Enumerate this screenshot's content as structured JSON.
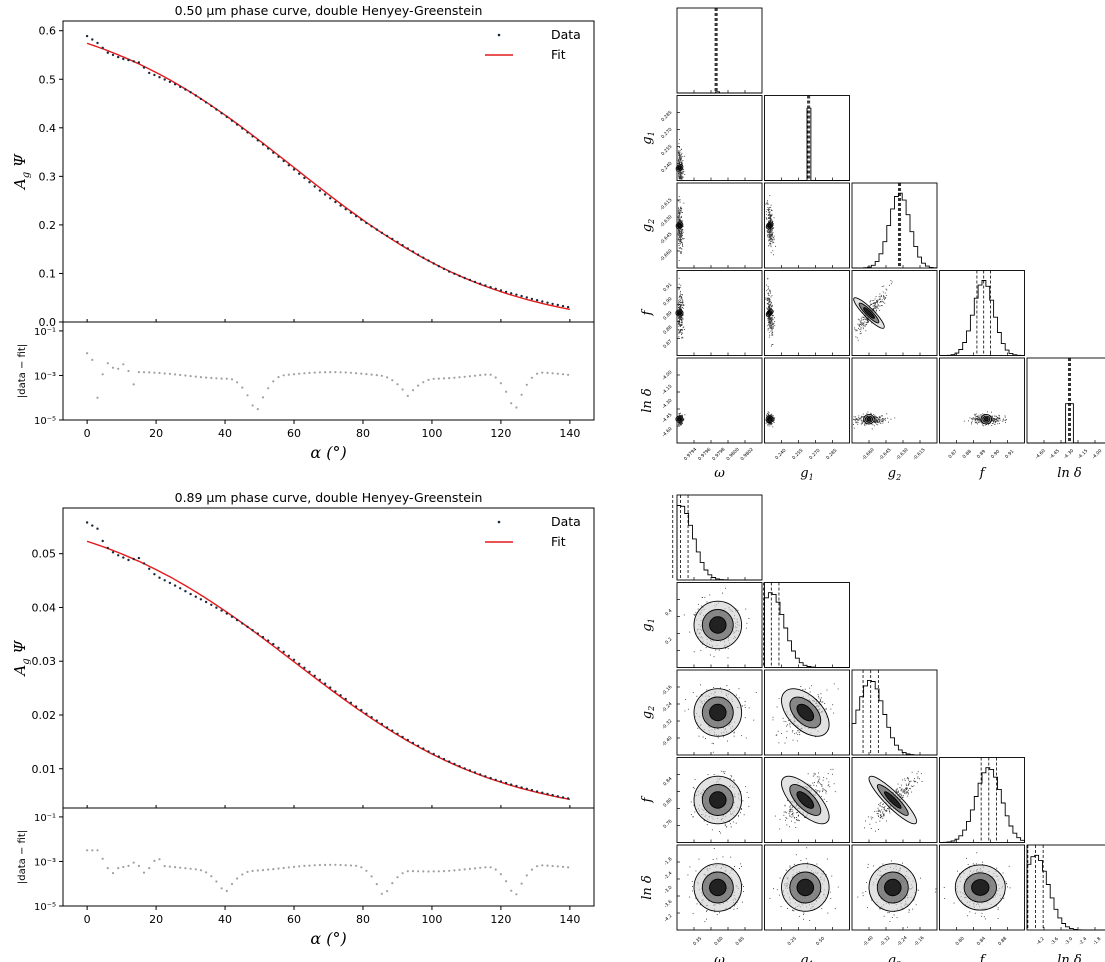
{
  "chart_data": [
    {
      "type": "scatter",
      "title": "0.50 μm phase curve, double Henyey-Greenstein",
      "ylabel": "A_g Ψ",
      "ylabel_parts": {
        "main": "A",
        "sub": "g",
        "tail": "Ψ"
      },
      "xlabel": "α (°)",
      "xlim": [
        -7,
        147
      ],
      "ylim": [
        0,
        0.62
      ],
      "xticks": [
        "0",
        "20",
        "40",
        "60",
        "80",
        "100",
        "120",
        "140"
      ],
      "xtick_values": [
        0,
        20,
        40,
        60,
        80,
        100,
        120,
        140
      ],
      "yticks": [
        "0.0",
        "0.1",
        "0.2",
        "0.3",
        "0.4",
        "0.5",
        "0.6"
      ],
      "ytick_values": [
        0,
        0.1,
        0.2,
        0.3,
        0.4,
        0.5,
        0.6
      ],
      "legend": {
        "position": "top-right",
        "entries": [
          "Data",
          "Fit"
        ]
      },
      "colors": {
        "data": "#1a2a3a",
        "fit": "#e41a1c",
        "residual": "#a0a0a0"
      },
      "fit_model": {
        "peak": 0.574,
        "mid": 0.339,
        "end": 0.026
      },
      "data_deviation": [
        [
          0,
          0.015
        ],
        [
          3,
          0.008
        ],
        [
          6,
          -0.004
        ],
        [
          10,
          -0.005
        ],
        [
          15,
          0.003
        ],
        [
          18,
          -0.008
        ],
        [
          30,
          0.0
        ],
        [
          55,
          -0.003
        ],
        [
          68,
          -0.006
        ],
        [
          74,
          -0.004
        ],
        [
          90,
          0.002
        ],
        [
          105,
          -0.001
        ],
        [
          125,
          0.004
        ],
        [
          140,
          0.004
        ]
      ],
      "residual": {
        "ylabel": "|data − fit|",
        "yticks": [
          "10⁻⁵",
          "10⁻³",
          "10⁻¹"
        ],
        "ytick_values": [
          -5,
          -3,
          -1
        ],
        "ylim_log10": [
          -5,
          -0.6
        ],
        "level_log10": -3,
        "noise_log10": [
          [
            0,
            -2.0
          ],
          [
            1,
            -2.2
          ],
          [
            2,
            -2.4
          ],
          [
            3,
            -4.0
          ],
          [
            5,
            -2.6
          ],
          [
            7,
            -2.3
          ],
          [
            8,
            -3.0
          ],
          [
            10,
            -2.4
          ],
          [
            12,
            -2.8
          ],
          [
            14,
            -3.6
          ]
        ],
        "dips": [
          [
            49,
            -4.6
          ],
          [
            93,
            -3.8
          ],
          [
            124,
            -4.8
          ]
        ]
      }
    },
    {
      "type": "scatter",
      "title": "0.89 μm phase curve, double Henyey-Greenstein",
      "ylabel": "A_g Ψ",
      "ylabel_parts": {
        "main": "A",
        "sub": "g",
        "tail": "Ψ"
      },
      "xlabel": "α (°)",
      "xlim": [
        -7,
        147
      ],
      "ylim": [
        0.0027,
        0.0585
      ],
      "xticks": [
        "0",
        "20",
        "40",
        "60",
        "80",
        "100",
        "120",
        "140"
      ],
      "xtick_values": [
        0,
        20,
        40,
        60,
        80,
        100,
        120,
        140
      ],
      "yticks": [
        "0.01",
        "0.02",
        "0.03",
        "0.04",
        "0.05"
      ],
      "ytick_values": [
        0.01,
        0.02,
        0.03,
        0.04,
        0.05
      ],
      "legend": {
        "position": "top-right",
        "entries": [
          "Data",
          "Fit"
        ]
      },
      "colors": {
        "data": "#1a2a3a",
        "fit": "#e41a1c",
        "residual": "#a0a0a0"
      },
      "fit_model": {
        "peak": 0.0523,
        "mid": 0.03,
        "end": 0.0043
      },
      "data_deviation": [
        [
          0,
          0.0035
        ],
        [
          3,
          0.003
        ],
        [
          5,
          0.0004
        ],
        [
          8,
          -0.0005
        ],
        [
          12,
          -0.0006
        ],
        [
          15,
          0.0006
        ],
        [
          20,
          -0.0012
        ],
        [
          30,
          -0.001
        ],
        [
          40,
          -0.0003
        ],
        [
          55,
          0.0004
        ],
        [
          70,
          0.0003
        ],
        [
          90,
          0.0002
        ],
        [
          110,
          0.0001
        ],
        [
          130,
          0.0002
        ],
        [
          140,
          0.0001
        ]
      ],
      "residual": {
        "ylabel": "|data − fit|",
        "yticks": [
          "10⁻⁵",
          "10⁻³",
          "10⁻¹"
        ],
        "ytick_values": [
          -5,
          -3,
          -1
        ],
        "ylim_log10": [
          -5,
          -0.6
        ],
        "level_log10": -3.3,
        "noise_log10": [
          [
            0,
            -2.5
          ],
          [
            3,
            -2.5
          ],
          [
            5,
            -3.0
          ],
          [
            7,
            -3.6
          ],
          [
            9,
            -3.3
          ],
          [
            12,
            -3.2
          ],
          [
            14,
            -3.0
          ],
          [
            17,
            -3.6
          ],
          [
            19,
            -3.0
          ],
          [
            21,
            -2.9
          ]
        ],
        "dips": [
          [
            40,
            -4.3
          ],
          [
            86,
            -4.6
          ],
          [
            124,
            -4.8
          ]
        ]
      }
    },
    {
      "type": "corner",
      "params": [
        "ω",
        "g₁",
        "g₂",
        "f",
        "ln δ"
      ],
      "labels": {
        "omega": "ω",
        "g1": "g",
        "g1_sub": "1",
        "g2": "g",
        "g2_sub": "2",
        "f": "f",
        "lnd": "ln δ"
      },
      "xticks": {
        "omega": [
          "0.9794",
          "0.9796",
          "0.9798",
          "0.9800",
          "0.9802"
        ],
        "g1": [
          "0.240",
          "0.255",
          "0.270",
          "0.285"
        ],
        "g2": [
          "-0.660",
          "-0.645",
          "-0.630",
          "-0.615"
        ],
        "f": [
          "0.87",
          "0.88",
          "0.89",
          "0.90",
          "0.91"
        ],
        "lnd": [
          "-4.60",
          "-4.45",
          "-4.30",
          "-4.15",
          "-4.00"
        ]
      },
      "yticks": {
        "g1": [
          "0.240",
          "0.255",
          "0.270",
          "0.285"
        ],
        "g2": [
          "-0.660",
          "-0.645",
          "-0.630",
          "-0.615"
        ],
        "f": [
          "0.87",
          "0.88",
          "0.89",
          "0.90",
          "0.91"
        ],
        "lnd": [
          "-4.60",
          "-4.45",
          "-4.30",
          "-4.15",
          "-4.00"
        ]
      },
      "hist_centers": [
        0.46,
        0.52,
        0.56,
        0.52,
        0.5
      ],
      "corr": [
        [
          0.3
        ],
        [
          0.2,
          0.35
        ],
        [
          0.1,
          0.5,
          -0.9
        ],
        [
          0.1,
          0.05,
          0.1,
          0.1
        ]
      ],
      "blob_centers": [
        [
          0.45,
          0.5
        ],
        [
          0.48,
          0.52
        ],
        [
          0.52,
          0.45
        ],
        [
          0.45,
          0.5
        ]
      ]
    },
    {
      "type": "corner",
      "params": [
        "ω",
        "g₁",
        "g₂",
        "f",
        "ln δ"
      ],
      "labels": {
        "omega": "ω",
        "g1": "g",
        "g1_sub": "1",
        "g2": "g",
        "g2_sub": "2",
        "f": "f",
        "lnd": "ln δ"
      },
      "xticks": {
        "omega": [
          "0.35",
          "0.60",
          "0.85"
        ],
        "g1": [
          "0.25",
          "0.50"
        ],
        "g2": [
          "-0.40",
          "-0.32",
          "-0.24",
          "-0.16"
        ],
        "f": [
          "0.80",
          "0.84",
          "0.88"
        ],
        "lnd": [
          "-4.2",
          "-3.6",
          "-3.0",
          "-2.4",
          "-1.8"
        ]
      },
      "yticks": {
        "g1": [
          "0.2",
          "0.4"
        ],
        "g2": [
          "-0.40",
          "-0.32",
          "-0.24",
          "-0.16"
        ],
        "f": [
          "0.76",
          "0.80",
          "0.84"
        ],
        "lnd": [
          "-4.2",
          "-3.6",
          "-3.0",
          "-2.4",
          "-1.8"
        ]
      },
      "hist_centers": [
        0.04,
        0.08,
        0.22,
        0.58,
        0.1
      ],
      "corr": [
        [
          0.0
        ],
        [
          0.0,
          -0.5
        ],
        [
          0.0,
          -0.7,
          -0.9
        ],
        [
          0.0,
          0.0,
          0.0,
          0.1
        ]
      ],
      "blob_centers": [
        [
          0.02,
          0.15
        ],
        [
          0.04,
          0.2
        ],
        [
          0.2,
          0.4
        ],
        [
          0.55,
          0.78
        ]
      ]
    }
  ]
}
